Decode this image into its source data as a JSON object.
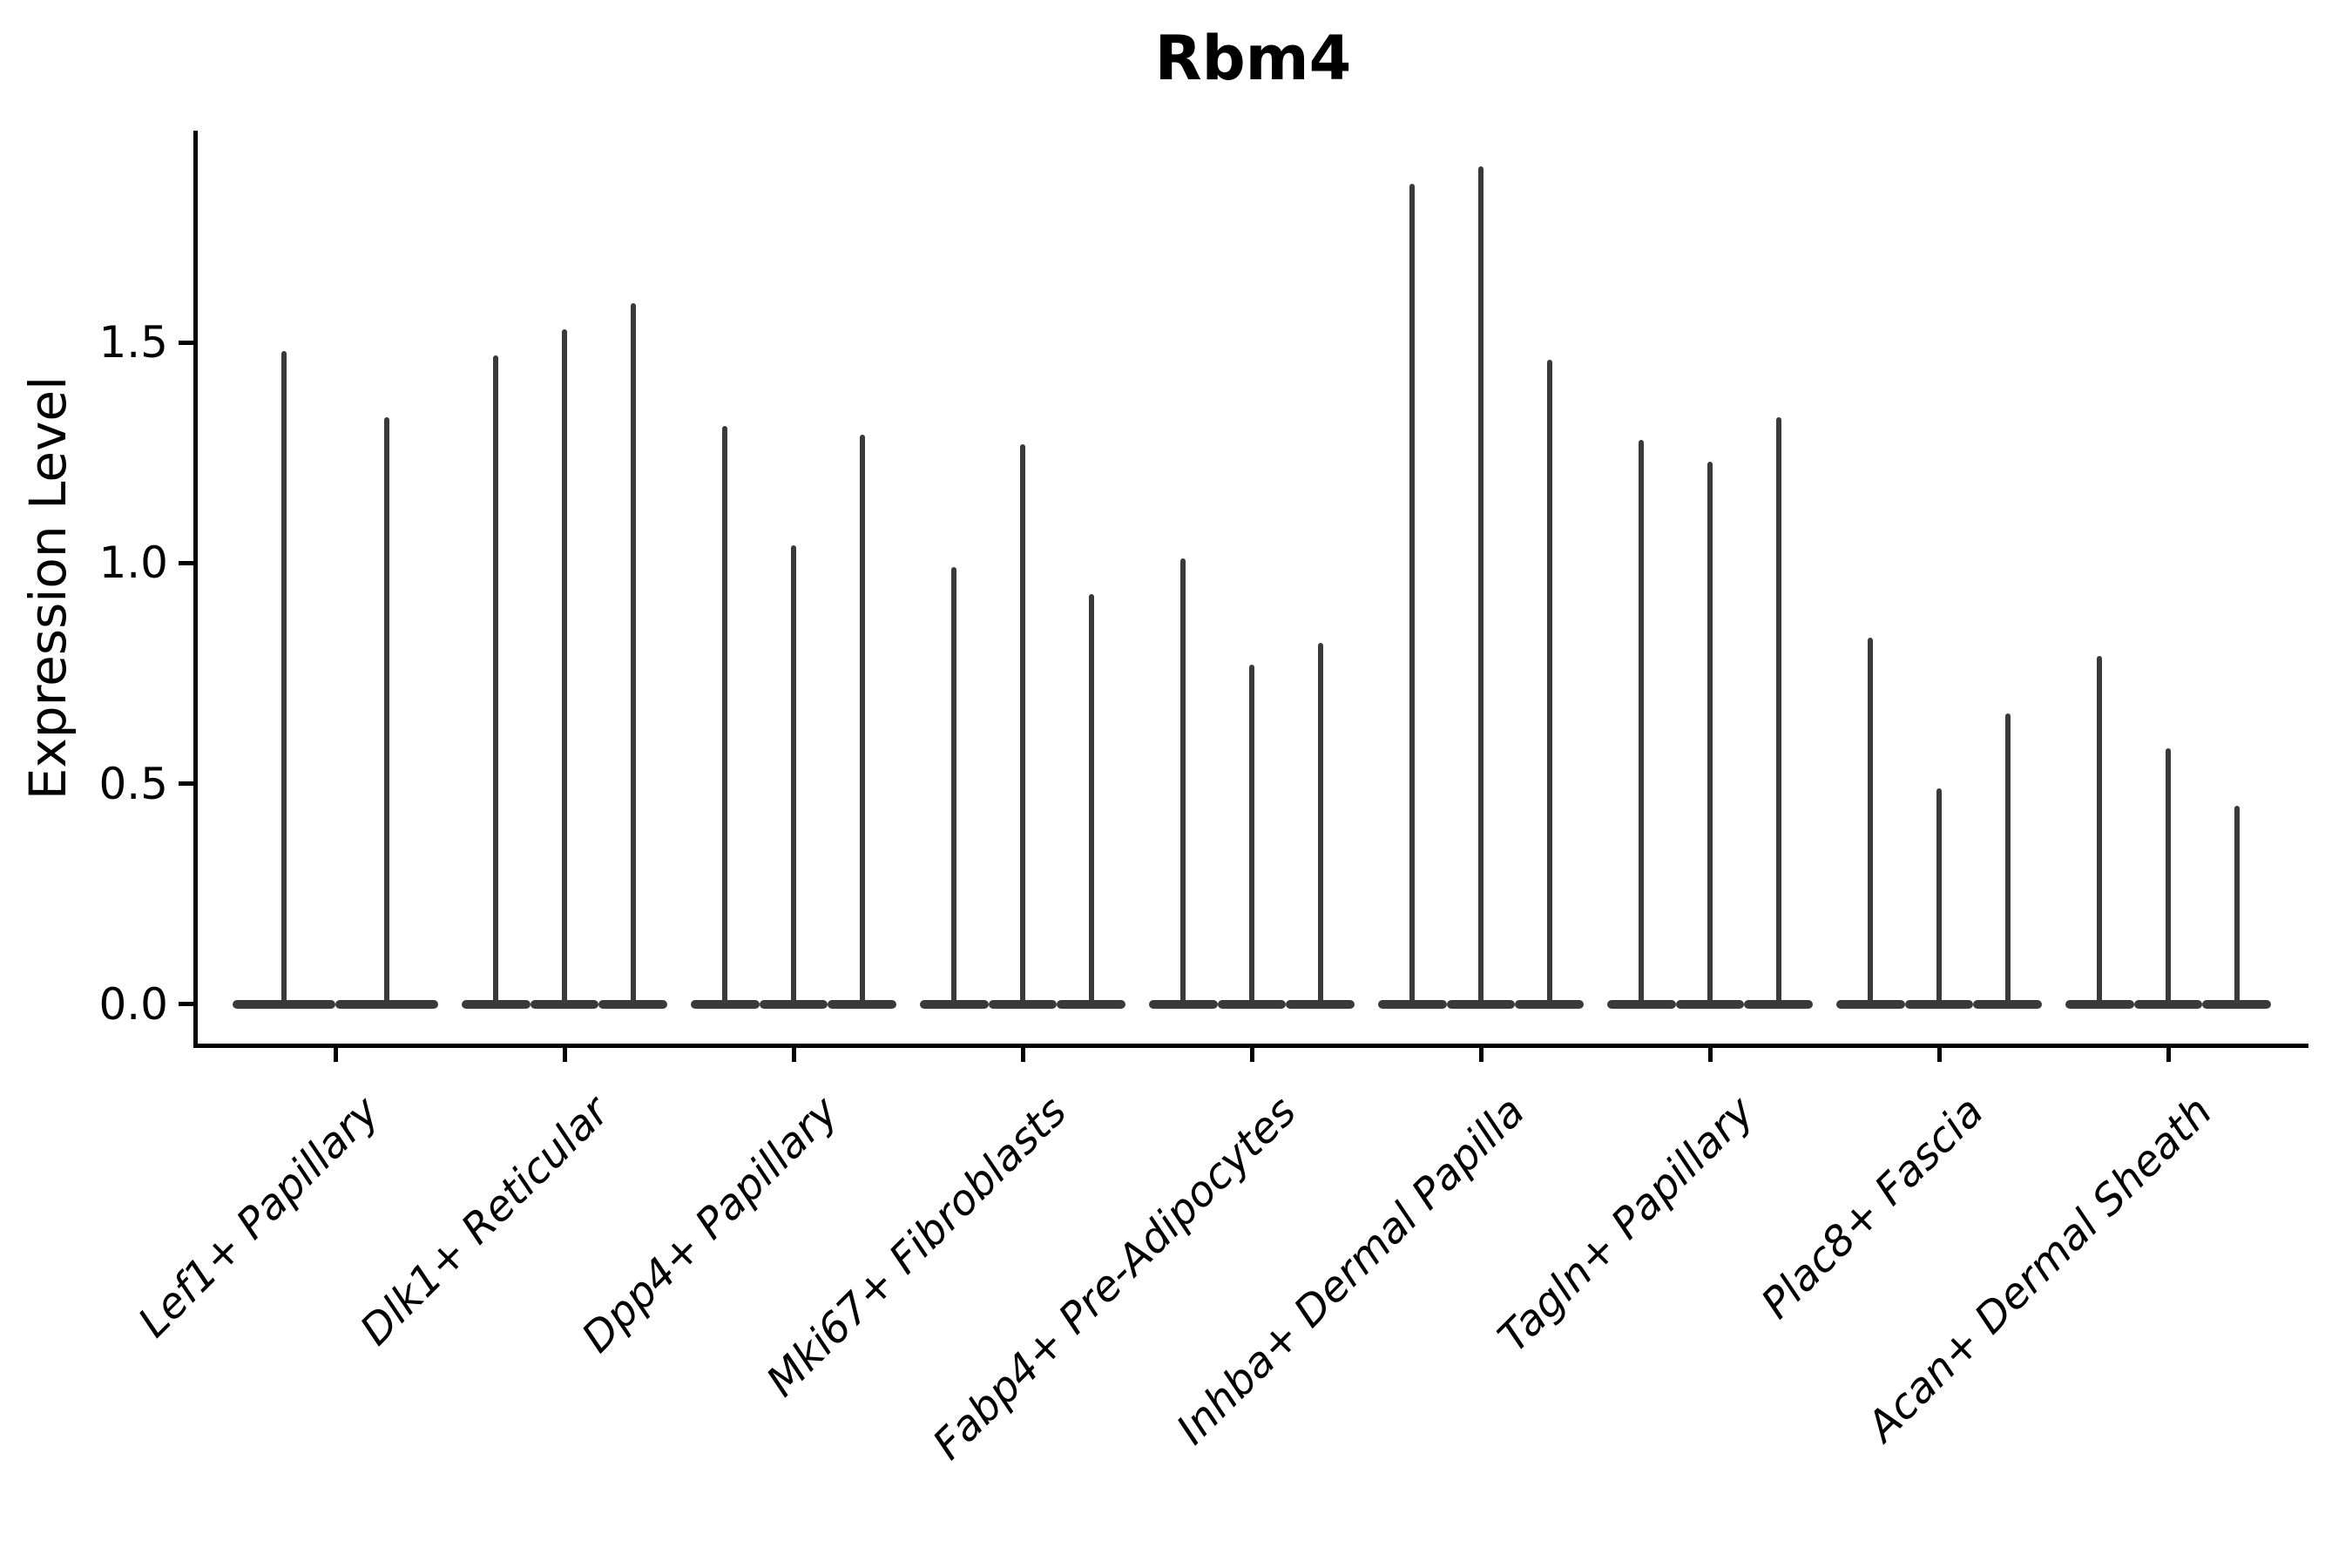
{
  "chart_data": {
    "type": "violin",
    "title": "Rbm4",
    "ylabel": "Expression Level",
    "xlabel": "",
    "yticks": [
      0.0,
      0.5,
      1.0,
      1.5
    ],
    "ytick_labels": [
      "0.0",
      "0.5",
      "1.0",
      "1.5"
    ],
    "ylim": [
      -0.093,
      1.98
    ],
    "grid": false,
    "legend": "none",
    "categories": [
      "Lef1+ Papillary",
      "Dlk1+ Reticular",
      "Dpp4+ Papillary",
      "Mki67+ Fibroblasts",
      "Fabp4+ Pre-Adipocytes",
      "Inhba+ Dermal Papilla",
      "Tagln+ Papillary",
      "Plac8+ Fascia",
      "Acan+ Dermal Sheath"
    ],
    "violins": [
      {
        "category": "Lef1+ Papillary",
        "max_values": [
          1.48,
          1.33
        ]
      },
      {
        "category": "Dlk1+ Reticular",
        "max_values": [
          1.47,
          1.53,
          1.59
        ]
      },
      {
        "category": "Dpp4+ Papillary",
        "max_values": [
          1.31,
          1.04,
          1.29
        ]
      },
      {
        "category": "Mki67+ Fibroblasts",
        "max_values": [
          0.99,
          1.27,
          0.93
        ]
      },
      {
        "category": "Fabp4+ Pre-Adipocytes",
        "max_values": [
          1.01,
          0.77,
          0.82
        ]
      },
      {
        "category": "Inhba+ Dermal Papilla",
        "max_values": [
          1.86,
          1.9,
          1.46
        ]
      },
      {
        "category": "Tagln+ Papillary",
        "max_values": [
          1.28,
          1.23,
          1.33
        ]
      },
      {
        "category": "Plac8+ Fascia",
        "max_values": [
          0.83,
          0.49,
          0.66
        ]
      },
      {
        "category": "Acan+ Dermal Sheath",
        "max_values": [
          0.79,
          0.58,
          0.45
        ]
      }
    ]
  },
  "colors": {
    "violin": "#3a3a3a",
    "axis": "#000000",
    "text": "#000000",
    "background": "#ffffff"
  }
}
